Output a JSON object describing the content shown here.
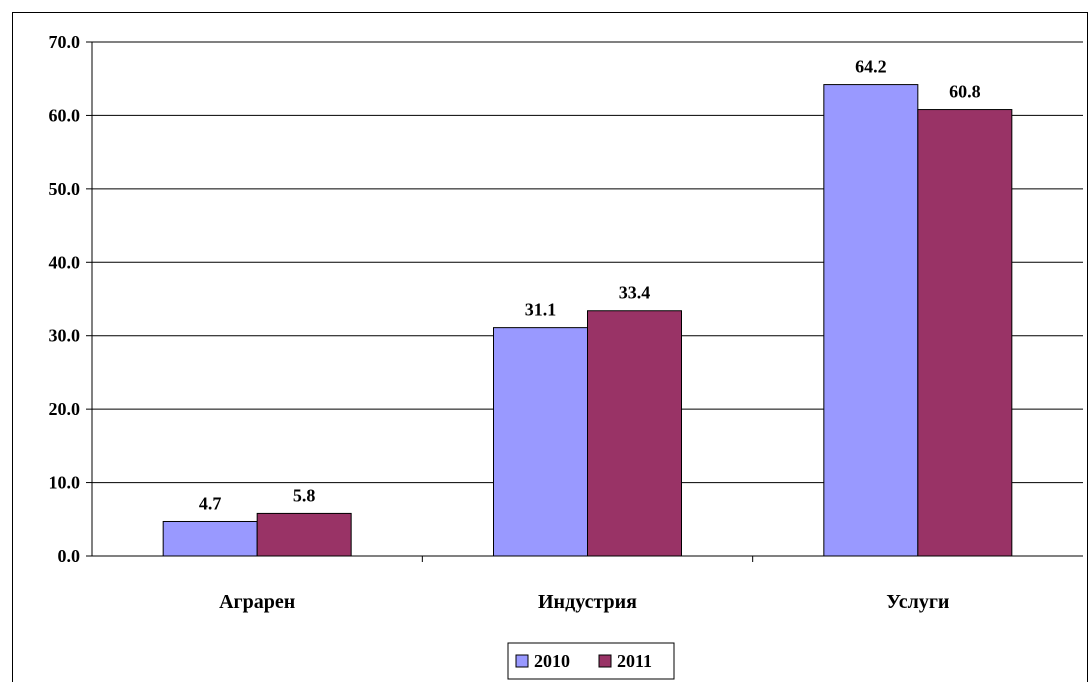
{
  "chart_data": {
    "type": "bar",
    "categories": [
      "Аграрен",
      "Индустрия",
      "Услуги"
    ],
    "series": [
      {
        "name": "2010",
        "values": [
          4.7,
          31.1,
          64.2
        ],
        "color": "#9999ff"
      },
      {
        "name": "2011",
        "values": [
          5.8,
          33.4,
          60.8
        ],
        "color": "#993366"
      }
    ],
    "data_labels": [
      [
        "4.7",
        "31.1",
        "64.2"
      ],
      [
        "5.8",
        "33.4",
        "60.8"
      ]
    ],
    "y_ticks": [
      "0.0",
      "10.0",
      "20.0",
      "30.0",
      "40.0",
      "50.0",
      "60.0",
      "70.0"
    ],
    "ylim": [
      0,
      70
    ],
    "grid": true,
    "legend_position": "bottom",
    "title": "",
    "xlabel": "",
    "ylabel": ""
  }
}
